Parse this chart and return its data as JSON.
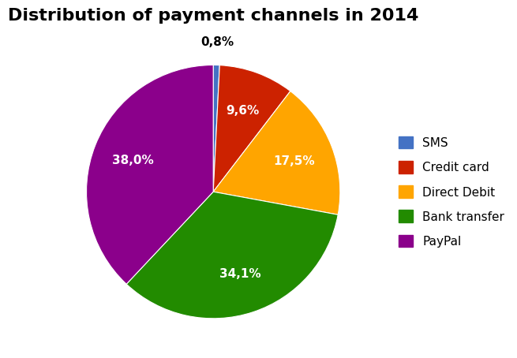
{
  "title": "Distribution of payment channels in 2014",
  "labels": [
    "SMS",
    "Credit card",
    "Direct Debit",
    "Bank transfer",
    "PayPal"
  ],
  "values": [
    0.8,
    9.6,
    17.5,
    34.1,
    38.0
  ],
  "colors": [
    "#4472C4",
    "#CC2200",
    "#FFA500",
    "#228B00",
    "#8B008B"
  ],
  "pct_labels": [
    "0,8%",
    "9,6%",
    "17,5%",
    "34,1%",
    "38,0%"
  ],
  "title_fontsize": 16,
  "legend_fontsize": 11,
  "pct_fontsize": 11,
  "background_color": "#FFFFFF"
}
